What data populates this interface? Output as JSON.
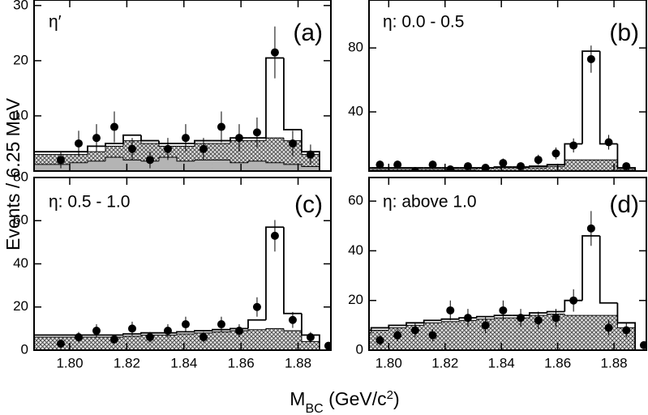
{
  "ylabel": "Events / 6.25 MeV",
  "xlabel": [
    "M",
    "BC",
    " (GeV/c",
    "2",
    ")"
  ],
  "chart_data": [
    {
      "type": "histogram",
      "label": "η′",
      "panel": "(a)",
      "xlim": [
        1.7875,
        1.8915
      ],
      "ylim": [
        0,
        31
      ],
      "yticks": [
        10,
        20,
        30
      ],
      "xticks": [
        1.8,
        1.82,
        1.84,
        1.86,
        1.88
      ],
      "xtick_labels": false,
      "bins": [
        1.7875,
        1.79375,
        1.8,
        1.80625,
        1.8125,
        1.81875,
        1.825,
        1.83125,
        1.8375,
        1.84375,
        1.85,
        1.85625,
        1.8625,
        1.86875,
        1.875,
        1.88125,
        1.8875
      ],
      "histograms": [
        {
          "fill": "hatch",
          "values": [
            3,
            3,
            3,
            3.5,
            4.5,
            5.5,
            5,
            4.5,
            4.5,
            5,
            5,
            5.5,
            5.5,
            6,
            5.5,
            3
          ]
        },
        {
          "fill": "#b4b4b4",
          "values": [
            1.2,
            1.2,
            1.5,
            1.8,
            2.5,
            2,
            1.8,
            2.5,
            1.8,
            2,
            2,
            1.5,
            1.8,
            1.5,
            1.2,
            0.8
          ]
        },
        {
          "fill": "none",
          "values": [
            3.5,
            3.5,
            3.5,
            4.5,
            5,
            6.5,
            5.5,
            5,
            5,
            5.5,
            5.5,
            6,
            6,
            20.5,
            7.5,
            3.5
          ]
        }
      ],
      "points": {
        "color": "#000000",
        "x": [
          1.796875,
          1.803125,
          1.809375,
          1.815625,
          1.821875,
          1.828125,
          1.834375,
          1.840625,
          1.846875,
          1.853125,
          1.859375,
          1.865625,
          1.871875,
          1.878125,
          1.884375
        ],
        "values": [
          2,
          5,
          6,
          8,
          4,
          2,
          4,
          6,
          4,
          8,
          6,
          7,
          21.5,
          5,
          3
        ],
        "errors": [
          1.5,
          2.3,
          2.5,
          2.8,
          2,
          1.5,
          2,
          2.5,
          2,
          2.8,
          2.5,
          2.7,
          4.7,
          2.3,
          1.8
        ]
      }
    },
    {
      "type": "histogram",
      "label": "η: 0.0 - 0.5",
      "panel": "(b)",
      "xlim": [
        1.793,
        1.8915
      ],
      "ylim": [
        3,
        110
      ],
      "yticks": [
        40,
        80
      ],
      "xticks": [
        1.8,
        1.82,
        1.84,
        1.86,
        1.88
      ],
      "xtick_labels": false,
      "bins": [
        1.7875,
        1.79375,
        1.8,
        1.80625,
        1.8125,
        1.81875,
        1.825,
        1.83125,
        1.8375,
        1.84375,
        1.85,
        1.85625,
        1.8625,
        1.86875,
        1.875,
        1.88125,
        1.8875
      ],
      "histograms": [
        {
          "fill": "hatch",
          "values": [
            4,
            4,
            4,
            4,
            4,
            4,
            4,
            5,
            5,
            5,
            5,
            6,
            10,
            10,
            10,
            4
          ]
        },
        {
          "fill": "none",
          "values": [
            5,
            5,
            5,
            5,
            5,
            5,
            5,
            5,
            5.5,
            5.5,
            6,
            7,
            20,
            78,
            20,
            5
          ]
        }
      ],
      "points": {
        "color": "#000000",
        "x": [
          1.796875,
          1.803125,
          1.809375,
          1.815625,
          1.821875,
          1.828125,
          1.834375,
          1.840625,
          1.846875,
          1.853125,
          1.859375,
          1.865625,
          1.871875,
          1.878125,
          1.884375
        ],
        "values": [
          7,
          7,
          3,
          7,
          4,
          6,
          5,
          8,
          6,
          10,
          14,
          19,
          73,
          21,
          6
        ],
        "errors": [
          2.6,
          2.6,
          1.7,
          2.6,
          2,
          2.4,
          2.2,
          2.8,
          2.4,
          3.2,
          3.7,
          4.4,
          8.5,
          4.6,
          2.4
        ]
      }
    },
    {
      "type": "histogram",
      "label": "η: 0.5 - 1.0",
      "panel": "(c)",
      "xlim": [
        1.7875,
        1.8915
      ],
      "ylim": [
        0,
        80
      ],
      "yticks": [
        0,
        20,
        40,
        60,
        80
      ],
      "xticks": [
        {
          "value": 1.8,
          "label": "1.80"
        },
        1.82,
        1.84,
        1.86,
        1.88
      ],
      "bins": [
        1.7875,
        1.79375,
        1.8,
        1.80625,
        1.8125,
        1.81875,
        1.825,
        1.83125,
        1.8375,
        1.84375,
        1.85,
        1.85625,
        1.8625,
        1.86875,
        1.875,
        1.88125,
        1.8875
      ],
      "histograms": [
        {
          "fill": "hatch",
          "values": [
            6,
            6,
            6,
            6,
            6,
            6.5,
            7,
            7,
            7.5,
            8,
            8.5,
            9,
            9.5,
            10,
            9,
            4
          ]
        },
        {
          "fill": "none",
          "values": [
            7,
            7,
            7,
            7,
            7,
            7.5,
            8,
            8,
            8.5,
            9,
            9.5,
            10,
            14,
            57,
            17,
            7
          ]
        }
      ],
      "points": {
        "color": "#000000",
        "x": [
          1.796875,
          1.803125,
          1.809375,
          1.815625,
          1.821875,
          1.828125,
          1.834375,
          1.840625,
          1.846875,
          1.853125,
          1.859375,
          1.865625,
          1.871875,
          1.878125,
          1.884375,
          1.890625
        ],
        "values": [
          3,
          6,
          9,
          5,
          10,
          6,
          9,
          12,
          6,
          12,
          9,
          20,
          53,
          14,
          6,
          2
        ],
        "errors": [
          1.7,
          2.4,
          3,
          2.2,
          3.2,
          2.4,
          3,
          3.5,
          2.4,
          3.5,
          3,
          4.5,
          7.3,
          3.7,
          2.4,
          1.4
        ]
      }
    },
    {
      "type": "histogram",
      "label": "η: above 1.0",
      "panel": "(d)",
      "xlim": [
        1.793,
        1.8915
      ],
      "ylim": [
        0,
        69.5
      ],
      "yticks": [
        0,
        20,
        40,
        60
      ],
      "xticks": [
        {
          "value": 1.8,
          "label": "1.80"
        },
        1.82,
        1.84,
        1.86,
        1.88
      ],
      "bins": [
        1.7875,
        1.79375,
        1.8,
        1.80625,
        1.8125,
        1.81875,
        1.825,
        1.83125,
        1.8375,
        1.84375,
        1.85,
        1.85625,
        1.8625,
        1.86875,
        1.875,
        1.88125,
        1.8875
      ],
      "histograms": [
        {
          "fill": "hatch",
          "values": [
            7,
            8,
            9,
            10,
            11,
            11.5,
            12,
            12.5,
            13,
            13,
            14,
            14.5,
            14,
            14,
            14,
            9
          ]
        },
        {
          "fill": "none",
          "values": [
            8,
            9,
            10,
            11,
            12,
            12.5,
            13,
            13.5,
            14,
            14,
            15,
            15.5,
            20,
            46,
            19,
            11
          ]
        }
      ],
      "points": {
        "color": "#000000",
        "x": [
          1.796875,
          1.803125,
          1.809375,
          1.815625,
          1.821875,
          1.828125,
          1.834375,
          1.840625,
          1.846875,
          1.853125,
          1.859375,
          1.865625,
          1.871875,
          1.878125,
          1.884375,
          1.890625
        ],
        "values": [
          4,
          6,
          8,
          6,
          16,
          13,
          10,
          16,
          13,
          12,
          13,
          20,
          49,
          9,
          8,
          2
        ],
        "errors": [
          2,
          2.4,
          2.8,
          2.4,
          4,
          3.6,
          3.2,
          4,
          3.6,
          3.5,
          3.6,
          4.5,
          7,
          3,
          2.8,
          1.4
        ]
      }
    }
  ]
}
